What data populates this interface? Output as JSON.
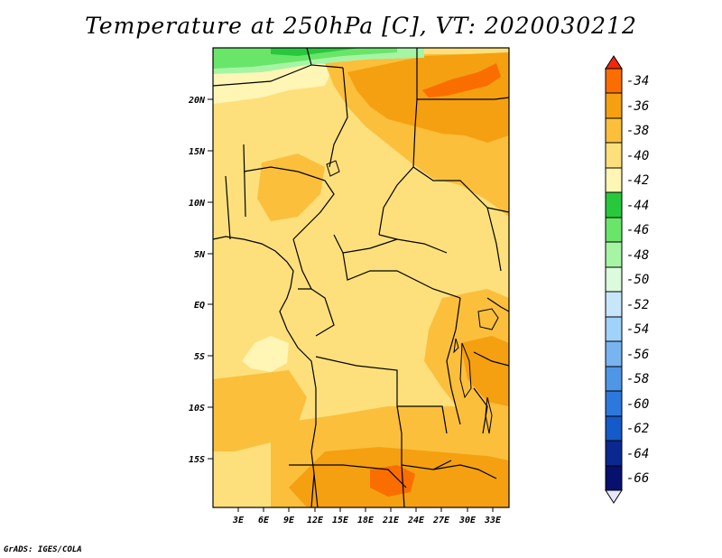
{
  "title": "Temperature at 250hPa [C], VT: 2020030212",
  "credit": "GrADS: IGES/COLA",
  "lat_labels": [
    "20N",
    "15N",
    "10N",
    "5N",
    "EQ",
    "5S",
    "10S",
    "15S"
  ],
  "lon_labels": [
    "3E",
    "6E",
    "9E",
    "12E",
    "15E",
    "18E",
    "21E",
    "24E",
    "27E",
    "30E",
    "33E"
  ],
  "legend": {
    "labels": [
      "-34",
      "-36",
      "-38",
      "-40",
      "-42",
      "-44",
      "-46",
      "-48",
      "-50",
      "-52",
      "-54",
      "-56",
      "-58",
      "-60",
      "-62",
      "-64",
      "-66"
    ],
    "colors": [
      "#f0280a",
      "#fa6e00",
      "#f5a010",
      "#fbbf3c",
      "#fde07c",
      "#fff5b4",
      "#28c83c",
      "#69e669",
      "#a5f5a5",
      "#dcfadc",
      "#c8e6fa",
      "#a0d2fa",
      "#78b4f0",
      "#5096e6",
      "#2d78dc",
      "#145ac8",
      "#0a2890",
      "#06106e",
      "#e6e6ff"
    ]
  },
  "colors": {
    "base": "#fde07c",
    "light": "#fff5b4",
    "warm": "#fbbf3c",
    "warmer": "#f5a010",
    "orange": "#fa6e00",
    "green_dark": "#28c83c",
    "green_mid": "#69e669",
    "green_light": "#a5f5a5",
    "border": "#000000"
  }
}
